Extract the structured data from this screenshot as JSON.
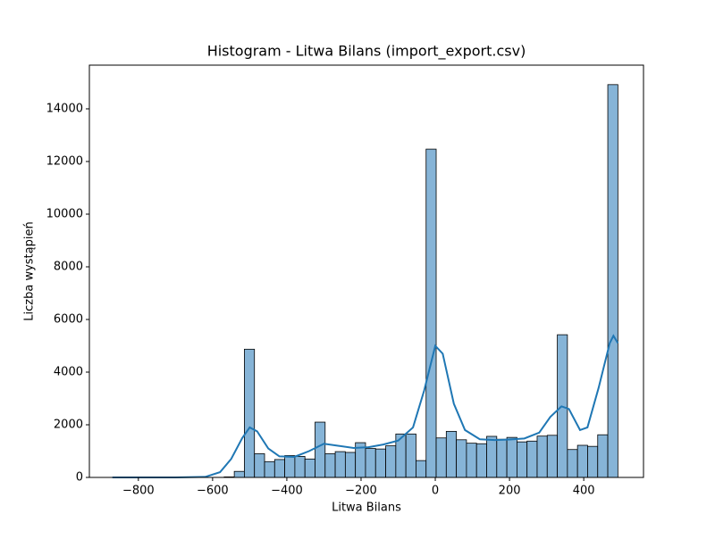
{
  "chart_data": {
    "type": "histogram",
    "title": "Histogram - Litwa Bilans (import_export.csv)",
    "x_label": "Litwa Bilans",
    "y_label": "Liczba wystąpień",
    "bins": [
      -868,
      -840.8,
      -813.6,
      -786.4,
      -759.2,
      -732,
      -704.8,
      -677.6,
      -650.4,
      -623.2,
      -596,
      -568.8,
      -541.6,
      -514.4,
      -487.2,
      -460,
      -432.8,
      -405.6,
      -378.4,
      -351.2,
      -324,
      -296.8,
      -269.6,
      -242.4,
      -215.2,
      -188,
      -160.8,
      -133.6,
      -106.4,
      -79.2,
      -52,
      -24.8,
      2.4,
      29.6,
      56.8,
      84,
      111.2,
      138.4,
      165.6,
      192.8,
      220,
      247.2,
      274.4,
      301.6,
      328.8,
      356,
      383.2,
      410.4,
      437.6,
      464.8,
      492
    ],
    "values": [
      1,
      0,
      0,
      0,
      0,
      0,
      1,
      0,
      2,
      3,
      5,
      20,
      230,
      4870,
      900,
      600,
      680,
      830,
      800,
      700,
      2100,
      900,
      980,
      950,
      1320,
      1100,
      1080,
      1200,
      1650,
      1650,
      640,
      12470,
      1500,
      1750,
      1430,
      1300,
      1280,
      1560,
      1450,
      1520,
      1350,
      1380,
      1570,
      1600,
      5420,
      1060,
      1220,
      1180,
      1620,
      14920
    ],
    "color": "#7fb0d5",
    "edge_color": "#000000",
    "kde": {
      "color": "#1f77b4",
      "x": [
        -870,
        -700,
        -620,
        -580,
        -550,
        -520,
        -500,
        -480,
        -450,
        -420,
        -380,
        -340,
        -300,
        -260,
        -220,
        -180,
        -140,
        -100,
        -60,
        -30,
        0,
        20,
        50,
        80,
        120,
        160,
        200,
        240,
        280,
        310,
        340,
        360,
        390,
        410,
        440,
        470,
        480,
        492
      ],
      "y": [
        0,
        0,
        20,
        200,
        700,
        1500,
        1900,
        1750,
        1100,
        800,
        780,
        1000,
        1280,
        1200,
        1120,
        1150,
        1250,
        1400,
        1900,
        3300,
        5000,
        4700,
        2800,
        1800,
        1450,
        1420,
        1440,
        1480,
        1700,
        2300,
        2700,
        2600,
        1800,
        1900,
        3400,
        5100,
        5380,
        5100
      ]
    },
    "xlim": [
      -932,
      561
    ],
    "xticks": [
      {
        "value": -800,
        "label": "−800"
      },
      {
        "value": -600,
        "label": "−600"
      },
      {
        "value": -400,
        "label": "−400"
      },
      {
        "value": -200,
        "label": "−200"
      },
      0,
      200,
      400
    ],
    "ylim": [
      0,
      15660
    ],
    "yticks": [
      0,
      2000,
      4000,
      6000,
      8000,
      10000,
      12000,
      14000
    ],
    "grid": false
  }
}
